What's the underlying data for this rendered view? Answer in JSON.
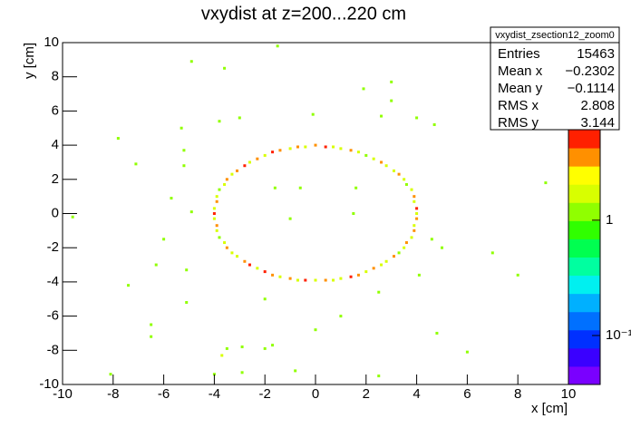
{
  "chart_data": {
    "type": "heatmap",
    "title": "vxydist at z=200...220 cm",
    "x_label": "x [cm]",
    "y_label": "y [cm]",
    "xlim": [
      -10,
      10
    ],
    "ylim": [
      -10,
      10
    ],
    "xticks": [
      -10,
      -8,
      -6,
      -4,
      -2,
      0,
      2,
      4,
      6,
      8,
      10
    ],
    "yticks": [
      -10,
      -8,
      -6,
      -4,
      -2,
      0,
      2,
      4,
      6,
      8,
      10
    ],
    "zlim": [
      0.0376,
      6.1
    ],
    "zscale": "log",
    "zticks": [
      {
        "value": 0.1,
        "label": "10⁻¹"
      },
      1
    ],
    "palette": [
      "#7a00ff",
      "#3a00ff",
      "#0030ff",
      "#0070ff",
      "#00b0ff",
      "#00f0f0",
      "#00ffa0",
      "#00ff50",
      "#30ff00",
      "#90ff00",
      "#d8ff00",
      "#ffff00",
      "#ff9000",
      "#ff2000"
    ],
    "x": [
      4,
      4,
      3.9,
      3.9,
      3.8,
      3.6,
      3.5,
      3.3,
      3.1,
      2.8,
      2.6,
      2.3,
      2,
      1.7,
      1.4,
      1,
      0.7,
      0.4,
      0,
      -0.4,
      -0.7,
      -1,
      -1.4,
      -1.7,
      -2,
      -2.3,
      -2.6,
      -2.8,
      -3.1,
      -3.3,
      -3.5,
      -3.6,
      -3.8,
      -3.9,
      -3.9,
      -4,
      -4,
      -4,
      -3.9,
      -3.9,
      -3.8,
      -3.6,
      -3.5,
      -3.3,
      -3.1,
      -2.8,
      -2.6,
      -2.3,
      -2,
      -1.7,
      -1.4,
      -1,
      -0.7,
      -0.4,
      0,
      0.4,
      0.7,
      1,
      1.4,
      1.7,
      2,
      2.3,
      2.6,
      2.8,
      3.1,
      3.3,
      3.5,
      3.6,
      3.8,
      3.9,
      3.9,
      4,
      -1.5,
      -4.9,
      -3.6,
      3.0,
      1.9,
      3.0,
      -0.1,
      -3.0,
      2.6,
      4.0,
      -3.8,
      4.7,
      -5.3,
      -7.8,
      -5.2,
      -7.1,
      -5.2,
      -1.6,
      -0.6,
      1.6,
      -5.7,
      -4.9,
      -9.6,
      -1.0,
      1.5,
      -6.0,
      4.6,
      7.0,
      5.0,
      -6.3,
      -5.1,
      4.1,
      8.0,
      -7.4,
      2.5,
      -2.0,
      -5.1,
      1.0,
      -6.5,
      0.0,
      -6.5,
      4.8,
      -2.9,
      -3.5,
      -2.0,
      6.0,
      -3.7,
      -1.7,
      -0.8,
      -2.9,
      -8.1,
      -4.0,
      2.5,
      9.1
    ],
    "y": [
      0,
      0.3,
      0.7,
      1,
      1.4,
      1.7,
      2,
      2.3,
      2.5,
      2.8,
      3,
      3.2,
      3.4,
      3.6,
      3.7,
      3.8,
      3.9,
      3.9,
      4,
      3.9,
      3.9,
      3.8,
      3.7,
      3.6,
      3.4,
      3.2,
      3,
      2.8,
      2.5,
      2.3,
      2,
      1.7,
      1.4,
      1,
      0.7,
      0.3,
      0,
      -0.3,
      -0.7,
      -1,
      -1.4,
      -1.7,
      -2,
      -2.3,
      -2.5,
      -2.8,
      -3,
      -3.2,
      -3.4,
      -3.6,
      -3.7,
      -3.8,
      -3.9,
      -3.9,
      -3.9,
      -3.9,
      -3.9,
      -3.8,
      -3.7,
      -3.6,
      -3.4,
      -3.2,
      -3,
      -2.8,
      -2.5,
      -2.3,
      -2,
      -1.7,
      -1.4,
      -1,
      -0.7,
      -0.3,
      9.8,
      8.9,
      8.5,
      7.7,
      7.3,
      6.6,
      5.8,
      5.6,
      5.7,
      5.6,
      5.4,
      5.2,
      5.0,
      4.4,
      3.7,
      2.9,
      2.8,
      1.5,
      1.5,
      1.5,
      0.9,
      0.1,
      -0.2,
      -0.3,
      0,
      -1.5,
      -1.5,
      -2.3,
      -2.0,
      -3.0,
      -3.3,
      -3.6,
      -3.6,
      -4.2,
      -4.6,
      -5.0,
      -5.2,
      -6.0,
      -6.5,
      -6.8,
      -7.2,
      -7.0,
      -7.8,
      -7.9,
      -7.9,
      -8.1,
      -8.3,
      -7.7,
      -9.2,
      -9.3,
      -9.4,
      -9.4,
      -9.5,
      1.8
    ],
    "values": [
      2,
      6,
      2,
      3,
      2,
      1,
      2,
      3,
      2,
      2,
      3,
      2,
      1,
      2,
      3,
      2,
      2,
      6,
      3,
      2,
      3,
      2,
      3,
      6,
      2,
      3,
      2,
      6,
      3,
      2,
      3,
      2,
      1,
      2,
      3,
      2,
      6,
      2,
      3,
      2,
      1,
      2,
      3,
      2,
      2,
      3,
      6,
      2,
      6,
      3,
      2,
      3,
      2,
      6,
      2,
      3,
      2,
      2,
      6,
      3,
      2,
      3,
      2,
      2,
      3,
      1,
      2,
      3,
      2,
      3,
      2,
      3,
      1,
      1,
      1,
      1,
      1,
      1,
      1,
      1,
      1,
      1,
      1,
      1,
      1,
      1,
      1,
      1,
      1,
      1,
      1,
      1,
      1,
      1,
      1,
      1,
      1,
      1,
      1,
      1,
      1,
      1,
      1,
      1,
      1,
      1,
      1,
      1,
      1,
      1,
      1,
      1,
      1,
      1,
      1,
      1,
      1,
      1,
      2,
      1,
      1,
      1,
      1,
      1,
      1,
      1
    ],
    "stats": {
      "title": "vxydist_zsection12_zoom0",
      "rows": [
        [
          "Entries",
          "15463"
        ],
        [
          "Mean x",
          "−0.2302"
        ],
        [
          "Mean y",
          "−0.1114"
        ],
        [
          "RMS x",
          "2.808"
        ],
        [
          "RMS y",
          "3.144"
        ]
      ]
    }
  }
}
